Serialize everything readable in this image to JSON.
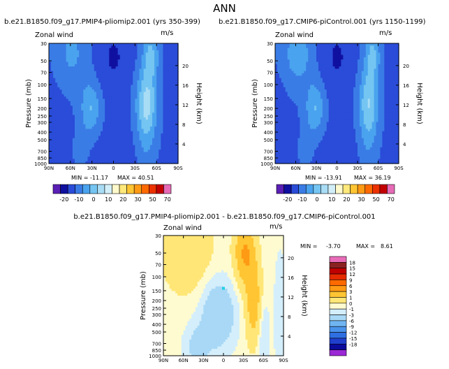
{
  "page": {
    "title": "ANN"
  },
  "panels": [
    {
      "case": "b.e21.B1850.f09_g17.PMIP4-pliomip2.001  (yrs 350-399)",
      "variable": "Zonal wind",
      "units": "m/s",
      "stats": {
        "min_label": "MIN = -11.17",
        "max_label": "MAX = 40.51"
      },
      "colorbar_labels": [
        "-20",
        "-10",
        "0",
        "10",
        "20",
        "30",
        "50",
        "70"
      ]
    },
    {
      "case": "b.e21.B1850.f09_g17.CMIP6-piControl.001  (yrs 1150-1199)",
      "variable": "Zonal wind",
      "units": "m/s",
      "stats": {
        "min_label": "MIN = -13.91",
        "max_label": "MAX = 36.19"
      },
      "colorbar_labels": [
        "-20",
        "-10",
        "0",
        "10",
        "20",
        "30",
        "50",
        "70"
      ]
    },
    {
      "case": "b.e21.B1850.f09_g17.PMIP4-pliomip2.001  -  b.e21.B1850.f09_g17.CMIP6-piControl.001",
      "variable": "Zonal wind",
      "units": "m/s",
      "stats": {
        "min_label": "MIN =",
        "min_value": "-3.70",
        "max_label": "MAX =",
        "max_value": "8.61"
      },
      "colorbar_labels": [
        "18",
        "15",
        "12",
        "9",
        "6",
        "3",
        "1",
        "0",
        "-1",
        "-3",
        "-6",
        "-9",
        "-12",
        "-15",
        "-18"
      ]
    }
  ],
  "chart_data": {
    "type": "heatmap",
    "xlabel": "",
    "ylabel_left": "Pressure (mb)",
    "ylabel_right": "Height (km)",
    "x_ticks": [
      "90N",
      "60N",
      "30N",
      "0",
      "30S",
      "60S",
      "90S"
    ],
    "pressure_ticks": [
      "30",
      "50",
      "70",
      "100",
      "150",
      "200",
      "250",
      "300",
      "400",
      "500",
      "700",
      "850",
      "1000"
    ],
    "height_ticks": [
      "20",
      "16",
      "12",
      "8",
      "4"
    ],
    "ylim_mb": [
      1000,
      30
    ],
    "abs_levels": [
      -20,
      -10,
      0,
      10,
      20,
      30,
      50,
      70
    ],
    "abs_colors": [
      "#5a1fb5",
      "#1010a0",
      "#2a4cd8",
      "#3a7ce6",
      "#4aa3ee",
      "#75c5f2",
      "#a9dcf5",
      "#d2eff9",
      "#fffacc",
      "#ffe97a",
      "#ffc532",
      "#ff9a14",
      "#ff6a00",
      "#ec3200",
      "#c20000",
      "#e66ab6"
    ],
    "diff_levels": [
      -18,
      -15,
      -12,
      -9,
      -6,
      -3,
      -1,
      0,
      1,
      3,
      6,
      9,
      12,
      15,
      18
    ],
    "diff_colors": [
      "#9a28d6",
      "#0b0b9c",
      "#1f3fcc",
      "#2f6fe2",
      "#4a93ec",
      "#70b5f2",
      "#a8d8f6",
      "#d4eefb",
      "#fffbd0",
      "#ffe676",
      "#ffc533",
      "#ff9a14",
      "#ff6a00",
      "#e62b00",
      "#c00000",
      "#8b2222",
      "#e86cb8"
    ],
    "panels": [
      {
        "name": "PMIP4-pliomip2",
        "min": -11.17,
        "max": 40.51
      },
      {
        "name": "CMIP6-piControl",
        "min": -13.91,
        "max": 36.19
      },
      {
        "name": "difference",
        "min": -3.7,
        "max": 8.61
      }
    ]
  }
}
